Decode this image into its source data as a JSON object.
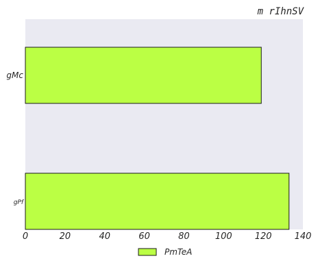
{
  "colors": {
    "plot_background": "#eaeaf2",
    "bar_fill": "#bbff44",
    "bar_edge": "#1a1a1a"
  },
  "chart_data": {
    "type": "bar",
    "orientation": "horizontal",
    "title": "m rIhnSV",
    "xlabel": "",
    "ylabel": "",
    "xlim": [
      0,
      140
    ],
    "xticks": [
      0,
      20,
      40,
      60,
      80,
      100,
      120,
      140
    ],
    "categories": [
      "gMc",
      "gPf"
    ],
    "series": [
      {
        "name": "PmTeA",
        "values": [
          119,
          133
        ]
      }
    ],
    "grid": false,
    "legend_position": "bottom-center"
  }
}
